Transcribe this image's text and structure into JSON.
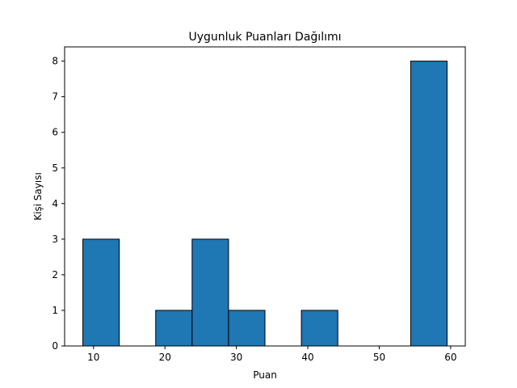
{
  "chart_data": {
    "type": "bar",
    "title": "Uygunluk Puanları Dağılımı",
    "xlabel": "Puan",
    "ylabel": "Kişi Sayısı",
    "bins": [
      {
        "start": 8.5,
        "end": 13.6,
        "count": 3
      },
      {
        "start": 13.6,
        "end": 18.7,
        "count": 0
      },
      {
        "start": 18.7,
        "end": 23.8,
        "count": 1
      },
      {
        "start": 23.8,
        "end": 28.9,
        "count": 3
      },
      {
        "start": 28.9,
        "end": 34.0,
        "count": 1
      },
      {
        "start": 34.0,
        "end": 39.1,
        "count": 0
      },
      {
        "start": 39.1,
        "end": 44.2,
        "count": 1
      },
      {
        "start": 44.2,
        "end": 49.3,
        "count": 0
      },
      {
        "start": 49.3,
        "end": 54.4,
        "count": 0
      },
      {
        "start": 54.4,
        "end": 59.5,
        "count": 8
      }
    ],
    "xlim": [
      5.95,
      62.05
    ],
    "ylim": [
      0,
      8.4
    ],
    "xticks": [
      10,
      20,
      30,
      40,
      50,
      60
    ],
    "yticks": [
      0,
      1,
      2,
      3,
      4,
      5,
      6,
      7,
      8
    ],
    "grid": false,
    "colors": {
      "bar_fill": "#1f77b4",
      "bar_edge": "#000000"
    }
  }
}
